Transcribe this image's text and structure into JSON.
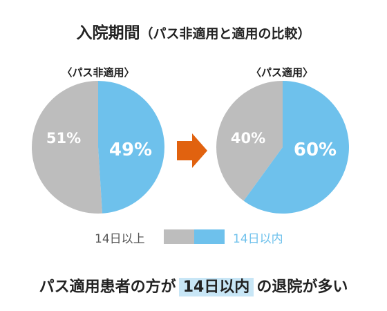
{
  "chart_data": {
    "title": "入院期間",
    "title_sub": "（パス非適用と適用の比較）",
    "charts": [
      {
        "type": "pie",
        "caption": "〈パス非適用〉",
        "slices": [
          {
            "label": "14日以上",
            "value": 51,
            "text": "51%",
            "color": "#bdbdbd"
          },
          {
            "label": "14日以内",
            "value": 49,
            "text": "49%",
            "color": "#6ec1ec"
          }
        ]
      },
      {
        "type": "pie",
        "caption": "〈パス適用〉",
        "slices": [
          {
            "label": "14日以上",
            "value": 40,
            "text": "40%",
            "color": "#bdbdbd"
          },
          {
            "label": "14日以内",
            "value": 60,
            "text": "60%",
            "color": "#6ec1ec"
          }
        ]
      }
    ],
    "legend": [
      {
        "label": "14日以上",
        "color": "#bdbdbd"
      },
      {
        "label": "14日以内",
        "color": "#6ec1ec"
      }
    ],
    "arrow_color": "#e1620f"
  },
  "note": {
    "before": "パス適用患者の方が",
    "highlight": "14日以内",
    "after": "の退院が多い"
  }
}
